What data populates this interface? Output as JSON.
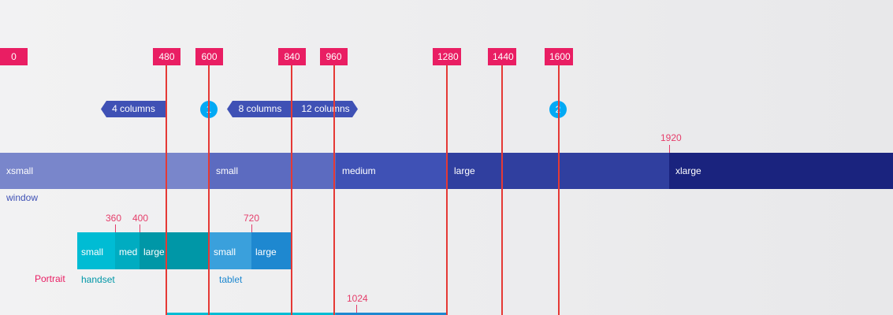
{
  "breakpoints": [
    "0",
    "480",
    "600",
    "840",
    "960",
    "1280",
    "1440",
    "1600"
  ],
  "columns": {
    "four": "4 columns",
    "eight": "8 columns",
    "twelve": "12 columns"
  },
  "markers": [
    "1",
    "2"
  ],
  "window_label_1920": "1920",
  "window_segments": [
    "xsmall",
    "small",
    "medium",
    "large",
    "xlarge"
  ],
  "window_caption": "window",
  "device_ticks": [
    "360",
    "400",
    "720",
    "1024"
  ],
  "portrait_segments": [
    "small",
    "med",
    "large",
    "small",
    "large"
  ],
  "portrait_label": "Portrait",
  "handset_caption": "handset",
  "tablet_caption": "tablet",
  "colors": {
    "breakpoint": "#e91e63",
    "guide_line": "#e53935",
    "column_label": "#3f51b5",
    "marker": "#03a9f4",
    "window_xsmall": "#7986cb",
    "window_small": "#5c6bc0",
    "window_medium": "#3f51b5",
    "window_large": "#303f9f",
    "window_xlarge": "#1a237e"
  }
}
